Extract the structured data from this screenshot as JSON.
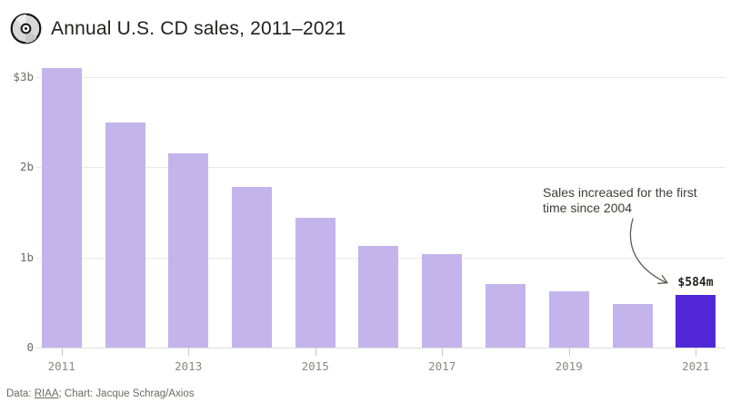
{
  "header": {
    "title": "Annual U.S. CD sales, 2011–2021",
    "icon": "cd-disc-icon"
  },
  "chart_data": {
    "type": "bar",
    "title": "Annual U.S. CD sales, 2011–2021",
    "categories": [
      "2011",
      "2012",
      "2013",
      "2014",
      "2015",
      "2016",
      "2017",
      "2018",
      "2019",
      "2020",
      "2021"
    ],
    "values": [
      3.1,
      2.49,
      2.15,
      1.78,
      1.44,
      1.13,
      1.04,
      0.7,
      0.62,
      0.48,
      0.584
    ],
    "unit": "billions of U.S. dollars",
    "ylim": [
      0,
      3.25
    ],
    "yticks": [
      {
        "value": 3,
        "label": "$3b"
      },
      {
        "value": 2,
        "label": "2b"
      },
      {
        "value": 1,
        "label": "1b"
      },
      {
        "value": 0,
        "label": "0"
      }
    ],
    "xtick_years": [
      "2011",
      "2013",
      "2015",
      "2017",
      "2019",
      "2021"
    ],
    "grid": true,
    "legend": false,
    "bar_color": "#c3b4eb",
    "highlight_color": "#5227d6",
    "highlight_index": 10,
    "value_label": {
      "index": 10,
      "text": "$584m"
    },
    "annotation_text": "Sales increased for the first time since 2004"
  },
  "annotation": {
    "line1": "Sales increased for the first",
    "line2": "time since 2004"
  },
  "footer": {
    "prefix": "Data: ",
    "link": "RIAA",
    "suffix": "; Chart: Jacque Schrag/Axios"
  }
}
